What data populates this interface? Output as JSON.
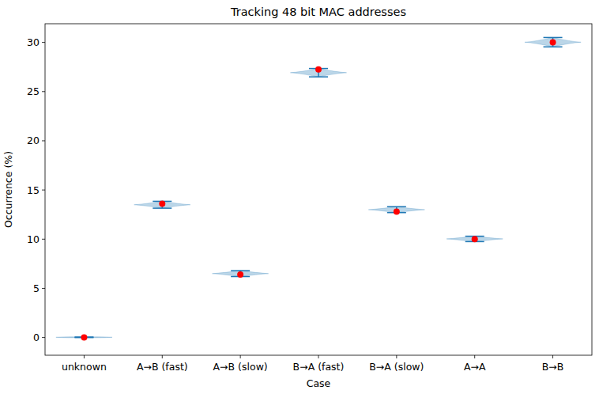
{
  "chart_data": {
    "type": "violin",
    "title": "Tracking 48 bit MAC addresses",
    "x_label": "Case",
    "y_label": "Occurrence (%)",
    "categories": [
      "unknown",
      "A→B (fast)",
      "A→B (slow)",
      "B→A (fast)",
      "B→A (slow)",
      "A→A",
      "B→B"
    ],
    "values": [
      0.0,
      13.6,
      6.4,
      27.25,
      12.8,
      10.0,
      30.0
    ],
    "mins": [
      0.0,
      13.15,
      6.2,
      26.5,
      12.7,
      9.75,
      29.55
    ],
    "maxs": [
      0.05,
      13.85,
      6.8,
      27.35,
      13.3,
      10.3,
      30.5
    ],
    "color": "#1f77b4",
    "marker": "circle",
    "ylim": [
      -1.8,
      31.9
    ],
    "yticks": [
      0,
      5,
      10,
      15,
      20,
      25,
      30
    ],
    "grid": false
  }
}
